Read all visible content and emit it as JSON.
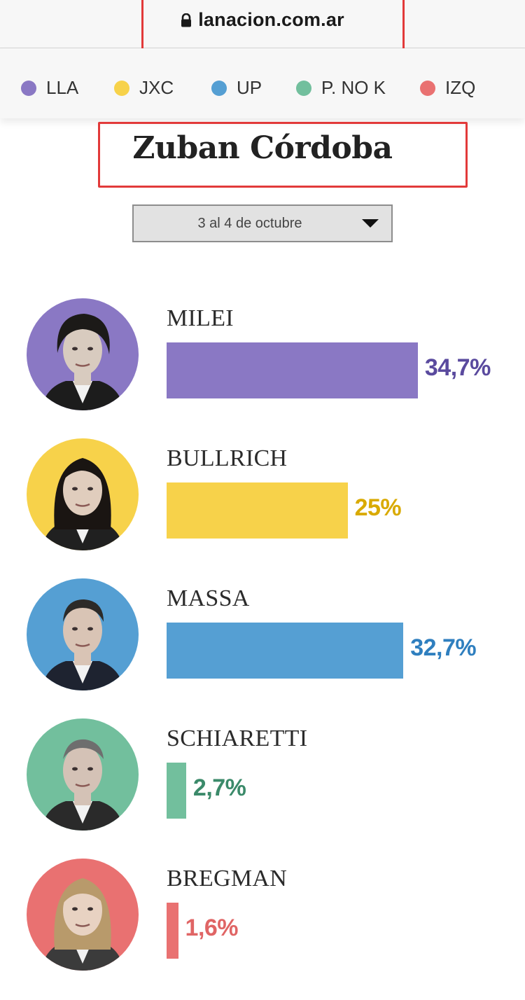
{
  "browser": {
    "url": "lanacion.com.ar"
  },
  "legend": [
    {
      "label": "LLA",
      "color": "#8a78c4"
    },
    {
      "label": "JXC",
      "color": "#f7d24a"
    },
    {
      "label": "UP",
      "color": "#559fd3"
    },
    {
      "label": "P. NO K",
      "color": "#72bf9d"
    },
    {
      "label": "IZQ",
      "color": "#e97171"
    }
  ],
  "poll": {
    "title": "Zuban Córdoba",
    "date_selector": "3 al 4 de octubre"
  },
  "chart_data": {
    "type": "bar",
    "orientation": "horizontal",
    "title": "Zuban Córdoba",
    "categories": [
      "MILEI",
      "BULLRICH",
      "MASSA",
      "SCHIARETTI",
      "BREGMAN"
    ],
    "values": [
      34.7,
      25,
      32.7,
      2.7,
      1.6
    ],
    "value_labels": [
      "34,7%",
      "25%",
      "32,7%",
      "2,7%",
      "1,6%"
    ],
    "bar_colors": [
      "#8a78c4",
      "#f7d24a",
      "#559fd3",
      "#72bf9d",
      "#e97171"
    ],
    "label_colors": [
      "#5a4a9e",
      "#d9aa00",
      "#2f7fbf",
      "#3b8a6a",
      "#e06565"
    ],
    "xlim": [
      0,
      35
    ],
    "grid": false,
    "legend": "top"
  }
}
